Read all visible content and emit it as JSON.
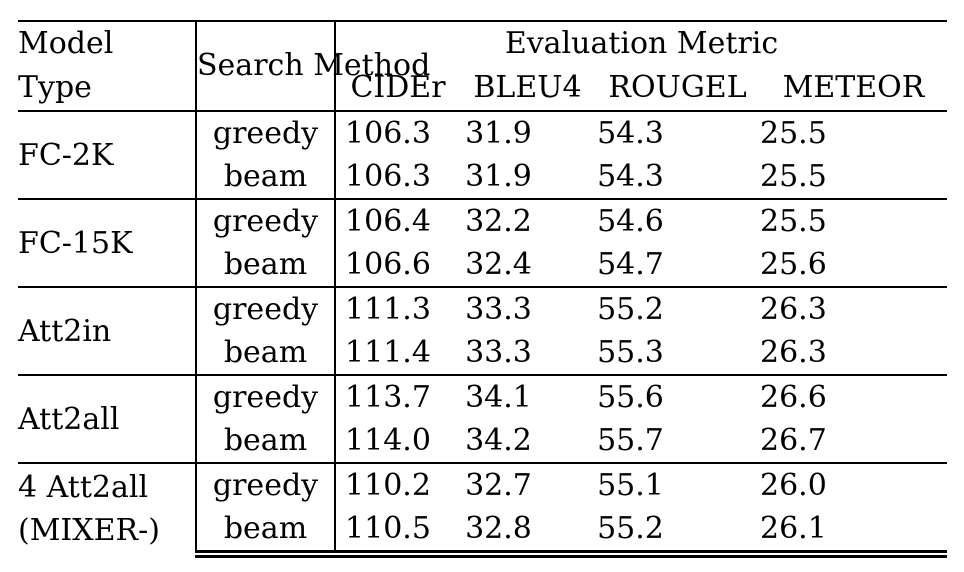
{
  "table": {
    "header": {
      "model_type": [
        "Model",
        "Type"
      ],
      "search_method": [
        "Search",
        "Method"
      ],
      "metric_group": "Evaluation Metric",
      "metrics": [
        "CIDEr",
        "BLEU4",
        "ROUGEL",
        "METEOR"
      ]
    },
    "groups": [
      {
        "model_lines": [
          "FC-2K"
        ],
        "rows": [
          {
            "method": "greedy",
            "values": [
              "106.3",
              "31.9",
              "54.3",
              "25.5"
            ],
            "bold": false
          },
          {
            "method": "beam",
            "values": [
              "106.3",
              "31.9",
              "54.3",
              "25.5"
            ],
            "bold": false
          }
        ]
      },
      {
        "model_lines": [
          "FC-15K"
        ],
        "rows": [
          {
            "method": "greedy",
            "values": [
              "106.4",
              "32.2",
              "54.6",
              "25.5"
            ],
            "bold": false
          },
          {
            "method": "beam",
            "values": [
              "106.6",
              "32.4",
              "54.7",
              "25.6"
            ],
            "bold": false
          }
        ]
      },
      {
        "model_lines": [
          "Att2in"
        ],
        "rows": [
          {
            "method": "greedy",
            "values": [
              "111.3",
              "33.3",
              "55.2",
              "26.3"
            ],
            "bold": false
          },
          {
            "method": "beam",
            "values": [
              "111.4",
              "33.3",
              "55.3",
              "26.3"
            ],
            "bold": false
          }
        ]
      },
      {
        "model_lines": [
          "Att2all"
        ],
        "rows": [
          {
            "method": "greedy",
            "values": [
              "113.7",
              "34.1",
              "55.6",
              "26.6"
            ],
            "bold": false
          },
          {
            "method": "beam",
            "values": [
              "114.0",
              "34.2",
              "55.7",
              "26.7"
            ],
            "bold": true
          }
        ]
      },
      {
        "model_lines": [
          "4 Att2all",
          "(MIXER-)"
        ],
        "rows": [
          {
            "method": "greedy",
            "values": [
              "110.2",
              "32.7",
              "55.1",
              "26.0"
            ],
            "bold": false
          },
          {
            "method": "beam",
            "values": [
              "110.5",
              "32.8",
              "55.2",
              "26.1"
            ],
            "bold": false
          }
        ]
      }
    ],
    "colors": {
      "text": "#000000",
      "background": "#ffffff",
      "rule": "#000000"
    }
  }
}
